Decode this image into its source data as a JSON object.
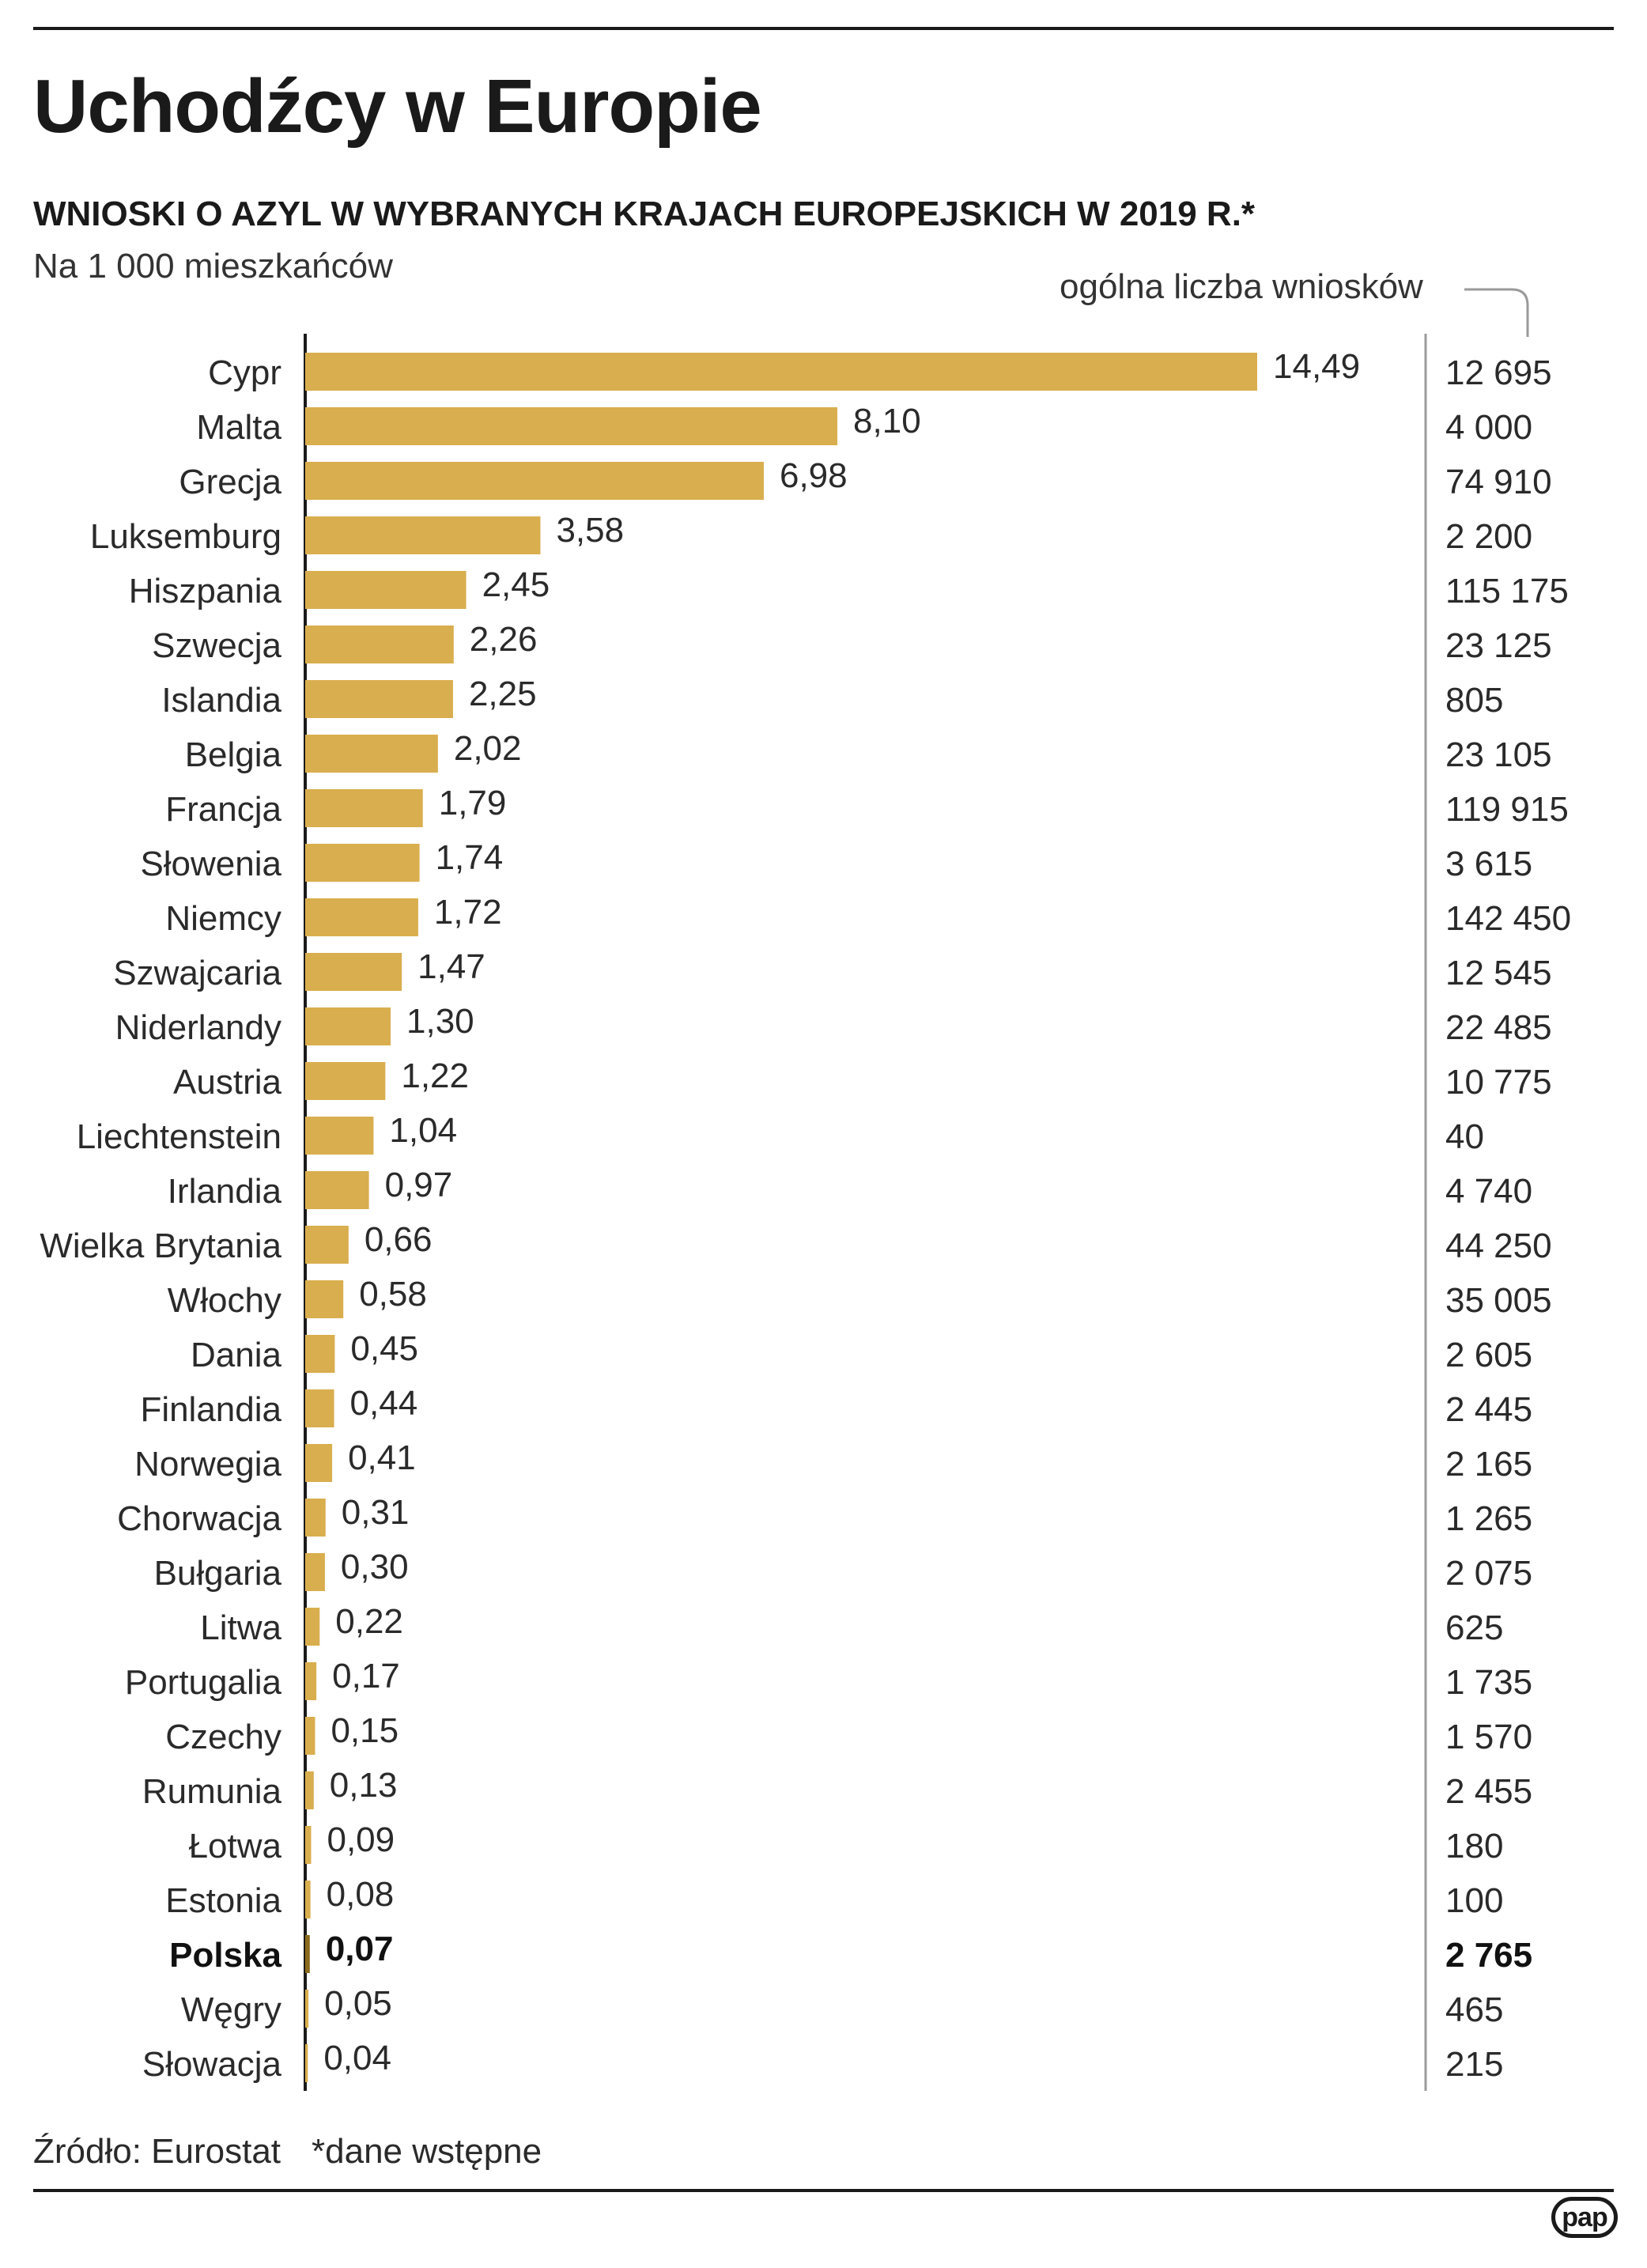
{
  "title": "Uchodźcy w Europie",
  "subtitle": "WNIOSKI O AZYL W WYBRANYCH KRAJACH EUROPEJSKICH W 2019 R.*",
  "unit_label": "Na 1 000 mieszkańców",
  "total_header": "ogólna liczba wniosków",
  "source": "Źródło: Eurostat",
  "note": "*dane wstępne",
  "logo": "pap",
  "colors": {
    "bar": "#d9ae4e",
    "bar_highlight": "#8a6a1c",
    "axis": "#1a1a1a",
    "divider": "#9a9a9a"
  },
  "chart_data": {
    "type": "bar",
    "orientation": "horizontal",
    "highlight": "Polska",
    "categories": [
      "Cypr",
      "Malta",
      "Grecja",
      "Luksemburg",
      "Hiszpania",
      "Szwecja",
      "Islandia",
      "Belgia",
      "Francja",
      "Słowenia",
      "Niemcy",
      "Szwajcaria",
      "Niderlandy",
      "Austria",
      "Liechtenstein",
      "Irlandia",
      "Wielka Brytania",
      "Włochy",
      "Dania",
      "Finlandia",
      "Norwegia",
      "Chorwacja",
      "Bułgaria",
      "Litwa",
      "Portugalia",
      "Czechy",
      "Rumunia",
      "Łotwa",
      "Estonia",
      "Polska",
      "Węgry",
      "Słowacja"
    ],
    "values": [
      14.49,
      8.1,
      6.98,
      3.58,
      2.45,
      2.26,
      2.25,
      2.02,
      1.79,
      1.74,
      1.72,
      1.47,
      1.3,
      1.22,
      1.04,
      0.97,
      0.66,
      0.58,
      0.45,
      0.44,
      0.41,
      0.31,
      0.3,
      0.22,
      0.17,
      0.15,
      0.13,
      0.09,
      0.08,
      0.07,
      0.05,
      0.04
    ],
    "value_labels": [
      "14,49",
      "8,10",
      "6,98",
      "3,58",
      "2,45",
      "2,26",
      "2,25",
      "2,02",
      "1,79",
      "1,74",
      "1,72",
      "1,47",
      "1,30",
      "1,22",
      "1,04",
      "0,97",
      "0,66",
      "0,58",
      "0,45",
      "0,44",
      "0,41",
      "0,31",
      "0,30",
      "0,22",
      "0,17",
      "0,15",
      "0,13",
      "0,09",
      "0,08",
      "0,07",
      "0,05",
      "0,04"
    ],
    "totals": [
      "12 695",
      "4 000",
      "74 910",
      "2 200",
      "115 175",
      "23 125",
      "805",
      "23 105",
      "119 915",
      "3 615",
      "142 450",
      "12 545",
      "22 485",
      "10 775",
      "40",
      "4 740",
      "44 250",
      "35 005",
      "2 605",
      "2 445",
      "2 165",
      "1 265",
      "2 075",
      "625",
      "1 735",
      "1 570",
      "2 455",
      "180",
      "100",
      "2 765",
      "465",
      "215"
    ]
  }
}
